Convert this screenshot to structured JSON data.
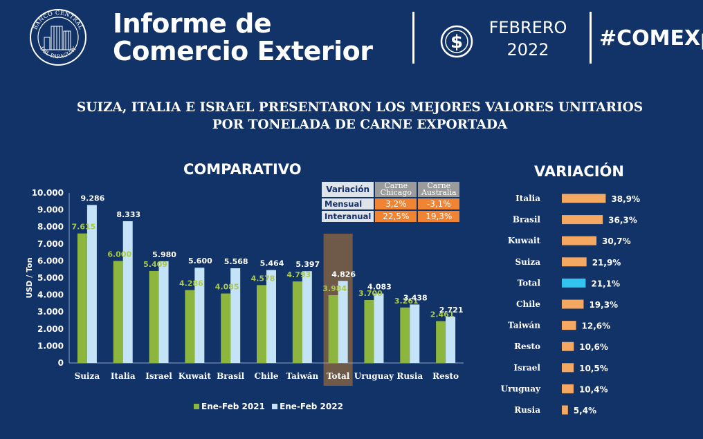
{
  "header": {
    "title_line1": "Informe de",
    "title_line2": "Comercio Exterior",
    "seal_top": "BANCO CENTRAL",
    "seal_bottom": "DEL PARAGUAY",
    "month": "FEBRERO",
    "year": "2022",
    "hashtag": "#COMEXpy"
  },
  "subtitle": {
    "line1": "SUIZA, ITALIA E ISRAEL PRESENTARON LOS MEJORES VALORES UNITARIOS",
    "line2": "POR TONELADA DE CARNE EXPORTADA"
  },
  "comparativo_title": "COMPARATIVO",
  "variacion_title": "VARIACIÓN",
  "variation_table": {
    "header": "Variación",
    "col1_line1": "Carne",
    "col1_line2": "Chicago",
    "col2_line1": "Carne",
    "col2_line2": "Australia",
    "rows": [
      {
        "label": "Mensual",
        "chicago": "3,2%",
        "australia": "-3,1%"
      },
      {
        "label": "Interanual",
        "chicago": "22,5%",
        "australia": "19,3%"
      }
    ]
  },
  "legend": {
    "s2021": "Ene-Feb 2021",
    "s2022": "Ene-Feb 2022"
  },
  "colors": {
    "background": "#123368",
    "s2021": "#8cb63d",
    "s2022": "#c5e3f6",
    "highlight": "#6f5a4a",
    "orange": "#f4a861",
    "total": "#31c4f0",
    "label2021": "#a9c94a"
  },
  "chart_data": [
    {
      "type": "bar",
      "title": "COMPARATIVO",
      "ylabel": "USD / Ton",
      "xlabel": "",
      "ylim": [
        0,
        10000
      ],
      "yticks": [
        0,
        1000,
        2000,
        3000,
        4000,
        5000,
        6000,
        7000,
        8000,
        9000,
        10000
      ],
      "ytick_labels": [
        "0",
        "1.000",
        "2.000",
        "3.000",
        "4.000",
        "5.000",
        "6.000",
        "7.000",
        "8.000",
        "9.000",
        "10.000"
      ],
      "categories": [
        "Suiza",
        "Italia",
        "Israel",
        "Kuwait",
        "Brasil",
        "Chile",
        "Taiwán",
        "Total",
        "Uruguay",
        "Rusia",
        "Resto"
      ],
      "highlight_category": "Total",
      "series": [
        {
          "name": "Ene-Feb 2021",
          "values": [
            7615,
            6000,
            5409,
            4286,
            4085,
            4578,
            4793,
            3984,
            3700,
            3261,
            2461
          ],
          "labels": [
            "7.615",
            "6.000",
            "5.409",
            "4.286",
            "4.085",
            "4.578",
            "4.793",
            "3.984",
            "3.700",
            "3.261",
            "2.461"
          ]
        },
        {
          "name": "Ene-Feb 2022",
          "values": [
            9286,
            8333,
            5980,
            5600,
            5568,
            5464,
            5397,
            4826,
            4083,
            3438,
            2721
          ],
          "labels": [
            "9.286",
            "8.333",
            "5.980",
            "5.600",
            "5.568",
            "5.464",
            "5.397",
            "4.826",
            "4.083",
            "3.438",
            "2.721"
          ]
        }
      ],
      "legend": "bottom"
    },
    {
      "type": "bar",
      "orientation": "horizontal",
      "title": "VARIACIÓN",
      "categories": [
        "Italia",
        "Brasil",
        "Kuwait",
        "Suiza",
        "Total",
        "Chile",
        "Taiwán",
        "Resto",
        "Israel",
        "Uruguay",
        "Rusia"
      ],
      "values": [
        38.9,
        36.3,
        30.7,
        21.9,
        21.1,
        19.3,
        12.6,
        10.6,
        10.5,
        10.4,
        5.4
      ],
      "labels": [
        "38,9%",
        "36,3%",
        "30,7%",
        "21,9%",
        "21,1%",
        "19,3%",
        "12,6%",
        "10,6%",
        "10,5%",
        "10,4%",
        "5,4%"
      ],
      "highlight_category": "Total",
      "unit": "%"
    }
  ]
}
